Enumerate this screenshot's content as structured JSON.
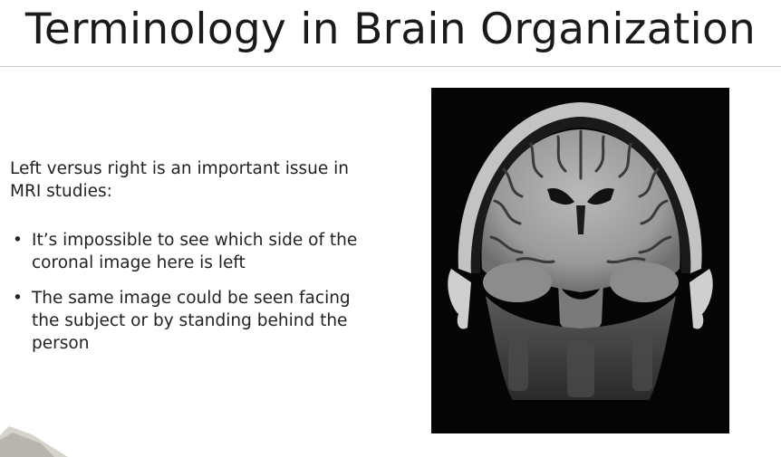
{
  "slide": {
    "title": "Terminology in Brain Organization",
    "intro": "Left versus right is an important issue in MRI studies:",
    "bullets": [
      "It’s impossible to see which side of the coronal image here is left",
      "The same image could be seen facing the subject or by standing behind the person"
    ],
    "bullet_glyph": "•"
  },
  "colors": {
    "background": "#ffffff",
    "text": "#222222",
    "rule": "#c8c8c8",
    "image_background": "#050505"
  },
  "image": {
    "icon": "mri-coronal-slice"
  }
}
